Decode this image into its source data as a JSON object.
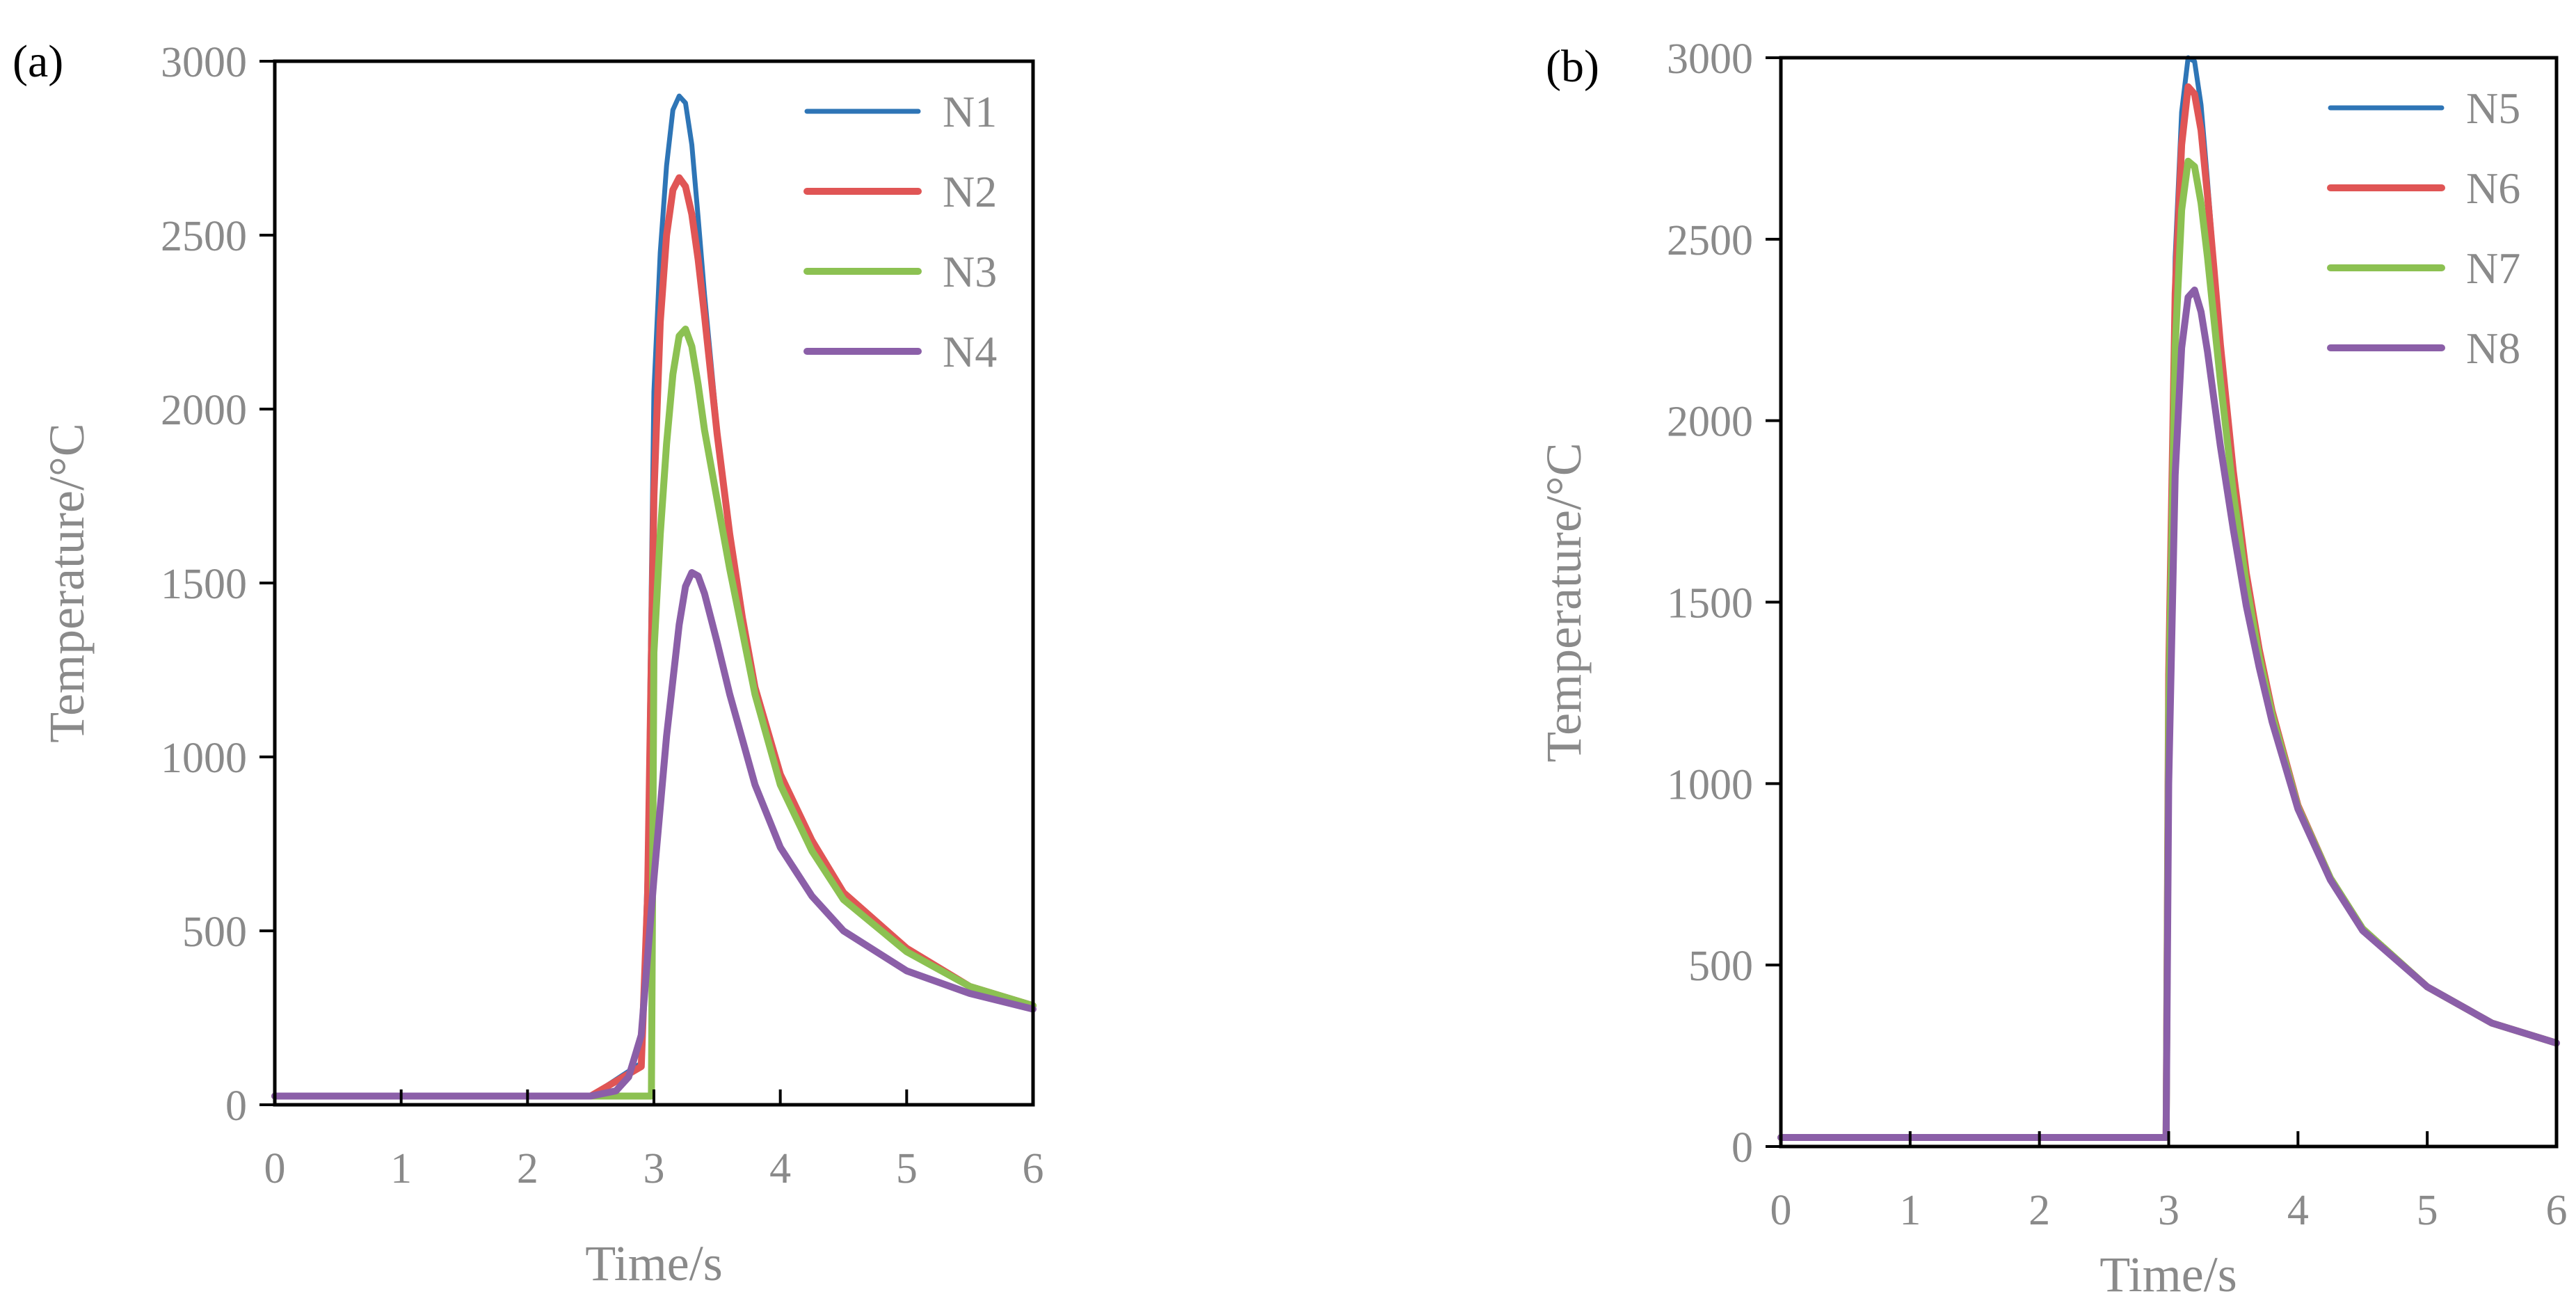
{
  "chart_data": [
    {
      "type": "line",
      "panel_label": "(a)",
      "xlabel": "Time/s",
      "ylabel": "Temperature/°C",
      "xlim": [
        0,
        6
      ],
      "ylim": [
        0,
        3000
      ],
      "xticks": [
        "0",
        "1",
        "2",
        "3",
        "4",
        "5",
        "6"
      ],
      "yticks": [
        "0",
        "500",
        "1000",
        "1500",
        "2000",
        "2500",
        "3000"
      ],
      "grid": false,
      "legend_position": "top-right",
      "series": [
        {
          "name": "N1",
          "color": "#2e75b6",
          "x": [
            0,
            2.5,
            2.9,
            2.95,
            3.0,
            3.05,
            3.1,
            3.15,
            3.2,
            3.25,
            3.3,
            3.35,
            3.4,
            3.5,
            3.6,
            3.7,
            3.8,
            4.0,
            4.25,
            4.5,
            5.0,
            5.5,
            6.0
          ],
          "y": [
            25,
            25,
            120,
            700,
            2050,
            2450,
            2700,
            2860,
            2900,
            2880,
            2760,
            2550,
            2330,
            1950,
            1650,
            1400,
            1200,
            950,
            760,
            610,
            450,
            340,
            285
          ]
        },
        {
          "name": "N2",
          "color": "#e05555",
          "x": [
            0,
            2.5,
            2.9,
            2.95,
            3.0,
            3.05,
            3.1,
            3.15,
            3.2,
            3.25,
            3.3,
            3.35,
            3.4,
            3.5,
            3.6,
            3.7,
            3.8,
            4.0,
            4.25,
            4.5,
            5.0,
            5.5,
            6.0
          ],
          "y": [
            25,
            25,
            110,
            600,
            1750,
            2250,
            2500,
            2630,
            2665,
            2640,
            2560,
            2430,
            2270,
            1930,
            1640,
            1400,
            1200,
            950,
            760,
            610,
            450,
            340,
            285
          ]
        },
        {
          "name": "N3",
          "color": "#8cc152",
          "x": [
            0,
            2.9,
            2.98,
            3.0,
            3.05,
            3.1,
            3.15,
            3.2,
            3.25,
            3.3,
            3.35,
            3.4,
            3.5,
            3.6,
            3.7,
            3.8,
            4.0,
            4.25,
            4.5,
            5.0,
            5.5,
            6.0
          ],
          "y": [
            25,
            25,
            25,
            1300,
            1640,
            1900,
            2100,
            2210,
            2230,
            2180,
            2070,
            1940,
            1740,
            1540,
            1360,
            1180,
            920,
            730,
            590,
            440,
            340,
            285
          ]
        },
        {
          "name": "N4",
          "color": "#8b5fa8",
          "x": [
            0,
            2.5,
            2.7,
            2.8,
            2.9,
            3.0,
            3.1,
            3.2,
            3.25,
            3.3,
            3.35,
            3.4,
            3.45,
            3.5,
            3.6,
            3.7,
            3.8,
            4.0,
            4.25,
            4.5,
            5.0,
            5.5,
            6.0
          ],
          "y": [
            25,
            25,
            40,
            80,
            200,
            650,
            1060,
            1380,
            1490,
            1530,
            1520,
            1470,
            1400,
            1330,
            1180,
            1050,
            920,
            740,
            600,
            500,
            385,
            320,
            275
          ]
        }
      ]
    },
    {
      "type": "line",
      "panel_label": "(b)",
      "xlabel": "Time/s",
      "ylabel": "Temperature/°C",
      "xlim": [
        0,
        6
      ],
      "ylim": [
        0,
        3000
      ],
      "xticks": [
        "0",
        "1",
        "2",
        "3",
        "4",
        "5",
        "6"
      ],
      "yticks": [
        "0",
        "500",
        "1000",
        "1500",
        "2000",
        "2500",
        "3000"
      ],
      "grid": false,
      "legend_position": "top-right",
      "series": [
        {
          "name": "N5",
          "color": "#2e75b6",
          "x": [
            0,
            2.9,
            2.98,
            3.0,
            3.05,
            3.1,
            3.15,
            3.2,
            3.25,
            3.3,
            3.35,
            3.4,
            3.5,
            3.6,
            3.7,
            3.8,
            4.0,
            4.25,
            4.5,
            5.0,
            5.5,
            6.0
          ],
          "y": [
            25,
            25,
            25,
            1400,
            2450,
            2850,
            3000,
            2990,
            2870,
            2660,
            2440,
            2220,
            1860,
            1580,
            1370,
            1200,
            940,
            740,
            600,
            440,
            340,
            285
          ]
        },
        {
          "name": "N6",
          "color": "#e05555",
          "x": [
            0,
            2.9,
            2.98,
            3.0,
            3.05,
            3.1,
            3.15,
            3.2,
            3.25,
            3.3,
            3.35,
            3.4,
            3.5,
            3.6,
            3.7,
            3.8,
            4.0,
            4.25,
            4.5,
            5.0,
            5.5,
            6.0
          ],
          "y": [
            25,
            25,
            25,
            1300,
            2350,
            2760,
            2920,
            2900,
            2800,
            2620,
            2420,
            2210,
            1860,
            1580,
            1370,
            1200,
            940,
            740,
            600,
            440,
            340,
            285
          ]
        },
        {
          "name": "N7",
          "color": "#8cc152",
          "x": [
            0,
            2.9,
            2.98,
            3.0,
            3.05,
            3.1,
            3.15,
            3.2,
            3.25,
            3.3,
            3.35,
            3.4,
            3.5,
            3.6,
            3.7,
            3.8,
            4.0,
            4.25,
            4.5,
            5.0,
            5.5,
            6.0
          ],
          "y": [
            25,
            25,
            25,
            1200,
            2200,
            2580,
            2715,
            2700,
            2600,
            2450,
            2280,
            2110,
            1800,
            1550,
            1350,
            1190,
            935,
            740,
            600,
            440,
            340,
            285
          ]
        },
        {
          "name": "N8",
          "color": "#8b5fa8",
          "x": [
            0,
            2.9,
            2.98,
            3.0,
            3.05,
            3.1,
            3.15,
            3.2,
            3.25,
            3.3,
            3.35,
            3.4,
            3.5,
            3.6,
            3.7,
            3.8,
            4.0,
            4.25,
            4.5,
            5.0,
            5.5,
            6.0
          ],
          "y": [
            25,
            25,
            25,
            1000,
            1850,
            2200,
            2340,
            2360,
            2300,
            2190,
            2060,
            1930,
            1700,
            1490,
            1320,
            1170,
            930,
            735,
            595,
            440,
            340,
            285
          ]
        }
      ]
    }
  ]
}
